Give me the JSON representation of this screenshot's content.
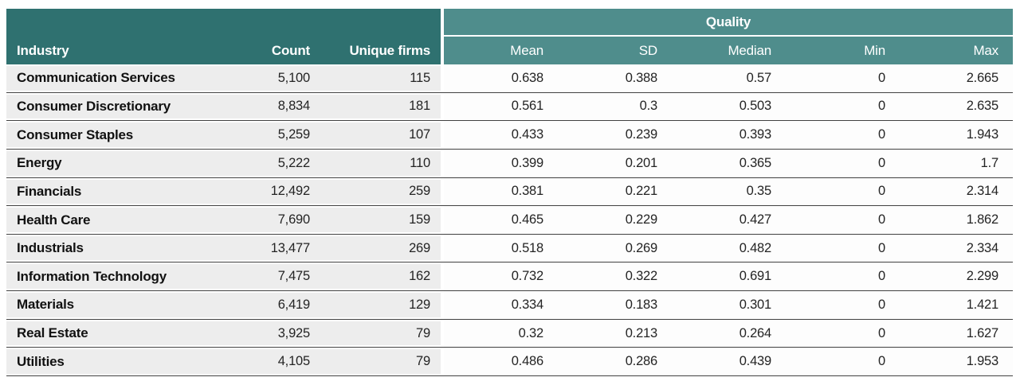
{
  "table": {
    "group_header": {
      "quality": "Quality"
    },
    "columns": {
      "industry": "Industry",
      "count": "Count",
      "unique_firms": "Unique firms",
      "mean": "Mean",
      "sd": "SD",
      "median": "Median",
      "min": "Min",
      "max": "Max"
    },
    "rows": [
      {
        "industry": "Communication Services",
        "count": "5,100",
        "unique_firms": "115",
        "mean": "0.638",
        "sd": "0.388",
        "median": "0.57",
        "min": "0",
        "max": "2.665"
      },
      {
        "industry": "Consumer Discretionary",
        "count": "8,834",
        "unique_firms": "181",
        "mean": "0.561",
        "sd": "0.3",
        "median": "0.503",
        "min": "0",
        "max": "2.635"
      },
      {
        "industry": "Consumer Staples",
        "count": "5,259",
        "unique_firms": "107",
        "mean": "0.433",
        "sd": "0.239",
        "median": "0.393",
        "min": "0",
        "max": "1.943"
      },
      {
        "industry": "Energy",
        "count": "5,222",
        "unique_firms": "110",
        "mean": "0.399",
        "sd": "0.201",
        "median": "0.365",
        "min": "0",
        "max": "1.7"
      },
      {
        "industry": "Financials",
        "count": "12,492",
        "unique_firms": "259",
        "mean": "0.381",
        "sd": "0.221",
        "median": "0.35",
        "min": "0",
        "max": "2.314"
      },
      {
        "industry": "Health Care",
        "count": "7,690",
        "unique_firms": "159",
        "mean": "0.465",
        "sd": "0.229",
        "median": "0.427",
        "min": "0",
        "max": "1.862"
      },
      {
        "industry": "Industrials",
        "count": "13,477",
        "unique_firms": "269",
        "mean": "0.518",
        "sd": "0.269",
        "median": "0.482",
        "min": "0",
        "max": "2.334"
      },
      {
        "industry": "Information Technology",
        "count": "7,475",
        "unique_firms": "162",
        "mean": "0.732",
        "sd": "0.322",
        "median": "0.691",
        "min": "0",
        "max": "2.299"
      },
      {
        "industry": "Materials",
        "count": "6,419",
        "unique_firms": "129",
        "mean": "0.334",
        "sd": "0.183",
        "median": "0.301",
        "min": "0",
        "max": "1.421"
      },
      {
        "industry": "Real Estate",
        "count": "3,925",
        "unique_firms": "79",
        "mean": "0.32",
        "sd": "0.213",
        "median": "0.264",
        "min": "0",
        "max": "1.627"
      },
      {
        "industry": "Utilities",
        "count": "4,105",
        "unique_firms": "79",
        "mean": "0.486",
        "sd": "0.286",
        "median": "0.439",
        "min": "0",
        "max": "1.953"
      }
    ],
    "colors": {
      "header_dark_teal": "#2f7170",
      "header_light_teal": "#4f8d8c",
      "row_left_bg": "#ededed",
      "row_right_bg": "#fdfdfd",
      "row_separator": "#414141"
    }
  }
}
